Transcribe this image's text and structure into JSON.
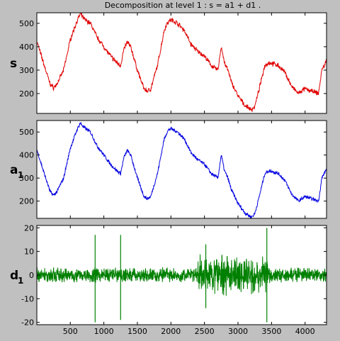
{
  "figure": {
    "title": "Decomposition at level 1 : s = a1 + d1 ."
  },
  "chart_data": [
    {
      "type": "line",
      "ylabel_main": "s",
      "ylabel_sub": "",
      "color": "#e00000",
      "xlim": [
        1,
        4320
      ],
      "ylim": [
        115,
        545
      ],
      "yticks": [
        200,
        300,
        400,
        500
      ],
      "series": [
        {
          "x": [
            0,
            100,
            200,
            250,
            300,
            400,
            500,
            600,
            650,
            700,
            800,
            900,
            1000,
            1100,
            1200,
            1250,
            1300,
            1350,
            1400,
            1500,
            1600,
            1650,
            1700,
            1800,
            1900,
            1950,
            2000,
            2100,
            2200,
            2300,
            2400,
            2500,
            2600,
            2700,
            2750,
            2800,
            2850,
            2900,
            3000,
            3100,
            3200,
            3250,
            3300,
            3400,
            3450,
            3500,
            3600,
            3700,
            3800,
            3900,
            4000,
            4100,
            4200,
            4250,
            4320
          ],
          "y": [
            425,
            330,
            240,
            225,
            240,
            300,
            430,
            510,
            540,
            520,
            500,
            440,
            400,
            360,
            330,
            320,
            390,
            420,
            400,
            300,
            220,
            210,
            220,
            320,
            470,
            505,
            515,
            500,
            470,
            410,
            380,
            360,
            320,
            300,
            400,
            330,
            300,
            250,
            190,
            150,
            130,
            145,
            200,
            320,
            330,
            330,
            320,
            290,
            230,
            200,
            220,
            210,
            200,
            300,
            340
          ]
        }
      ]
    },
    {
      "type": "line",
      "ylabel_main": "a",
      "ylabel_sub": "1",
      "color": "#0000e0",
      "xlim": [
        1,
        4320
      ],
      "ylim": [
        125,
        550
      ],
      "yticks": [
        200,
        300,
        400,
        500
      ],
      "series": [
        {
          "x": [
            0,
            100,
            200,
            250,
            300,
            400,
            500,
            600,
            650,
            700,
            800,
            900,
            1000,
            1100,
            1200,
            1250,
            1300,
            1350,
            1400,
            1500,
            1600,
            1650,
            1700,
            1800,
            1900,
            1950,
            2000,
            2100,
            2200,
            2300,
            2400,
            2500,
            2600,
            2700,
            2750,
            2800,
            2850,
            2900,
            3000,
            3100,
            3200,
            3250,
            3300,
            3400,
            3450,
            3500,
            3600,
            3700,
            3800,
            3900,
            4000,
            4100,
            4200,
            4250,
            4320
          ],
          "y": [
            425,
            330,
            240,
            225,
            240,
            300,
            430,
            510,
            540,
            520,
            500,
            440,
            400,
            360,
            330,
            320,
            390,
            420,
            400,
            300,
            220,
            210,
            220,
            320,
            470,
            505,
            515,
            500,
            470,
            410,
            380,
            360,
            320,
            300,
            400,
            330,
            300,
            250,
            190,
            150,
            130,
            145,
            200,
            320,
            330,
            330,
            320,
            290,
            230,
            200,
            220,
            210,
            200,
            300,
            340
          ]
        }
      ]
    },
    {
      "type": "line",
      "ylabel_main": "d",
      "ylabel_sub": "1",
      "color": "#008000",
      "xlim": [
        1,
        4320
      ],
      "ylim": [
        -21,
        21
      ],
      "yticks": [
        -20,
        -10,
        0,
        10,
        20
      ],
      "xticks": [
        500,
        1000,
        1500,
        2000,
        2500,
        3000,
        3500,
        4000
      ],
      "noise_bands": [
        {
          "x_start": 1,
          "x_end": 2400,
          "amplitude": 3.5
        },
        {
          "x_start": 2400,
          "x_end": 3450,
          "amplitude": 9
        },
        {
          "x_start": 3450,
          "x_end": 4320,
          "amplitude": 3.5
        }
      ],
      "spikes": [
        {
          "x": 870,
          "y_low": -20,
          "y_high": 17
        },
        {
          "x": 1250,
          "y_low": -19,
          "y_high": 17
        },
        {
          "x": 2520,
          "y_low": -14,
          "y_high": 13
        },
        {
          "x": 3430,
          "y_low": -20,
          "y_high": 20
        }
      ]
    }
  ]
}
